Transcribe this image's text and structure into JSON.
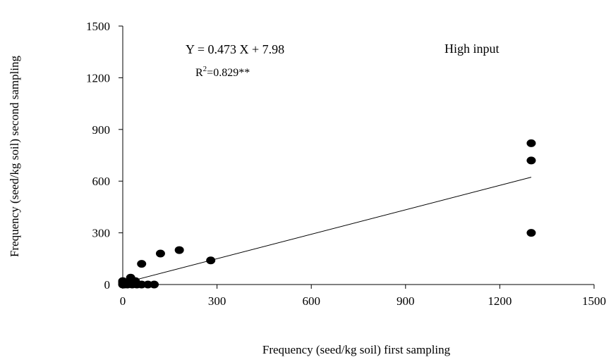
{
  "chart_data": {
    "type": "scatter",
    "title": "",
    "xlabel": "Frequency (seed/kg soil) first sampling",
    "ylabel": "Frequency (seed/kg soil) second sampling",
    "xlim": [
      0,
      1500
    ],
    "ylim": [
      0,
      1500
    ],
    "xticks": [
      "0",
      "300",
      "600",
      "900",
      "1200",
      "1500"
    ],
    "yticks": [
      "0",
      "300",
      "600",
      "900",
      "1200",
      "1500"
    ],
    "grid": false,
    "points": [
      {
        "x": 0,
        "y": 0
      },
      {
        "x": 0,
        "y": 10
      },
      {
        "x": 0,
        "y": 20
      },
      {
        "x": 5,
        "y": 0
      },
      {
        "x": 10,
        "y": 5
      },
      {
        "x": 15,
        "y": 0
      },
      {
        "x": 20,
        "y": 15
      },
      {
        "x": 25,
        "y": 40
      },
      {
        "x": 30,
        "y": 0
      },
      {
        "x": 40,
        "y": 20
      },
      {
        "x": 45,
        "y": 0
      },
      {
        "x": 60,
        "y": 120
      },
      {
        "x": 60,
        "y": 0
      },
      {
        "x": 80,
        "y": 0
      },
      {
        "x": 100,
        "y": 0
      },
      {
        "x": 120,
        "y": 180
      },
      {
        "x": 180,
        "y": 200
      },
      {
        "x": 280,
        "y": 140
      },
      {
        "x": 1300,
        "y": 820
      },
      {
        "x": 1300,
        "y": 720
      },
      {
        "x": 1300,
        "y": 300
      }
    ],
    "trendline": {
      "slope": 0.473,
      "intercept": 7.98,
      "x_range": [
        0,
        1300
      ]
    },
    "annotations": {
      "equation": "Y = 0.473 X + 7.98",
      "r2_prefix": "R",
      "r2_sup": "2",
      "r2_value": "=0.829**",
      "label": "High input"
    }
  }
}
